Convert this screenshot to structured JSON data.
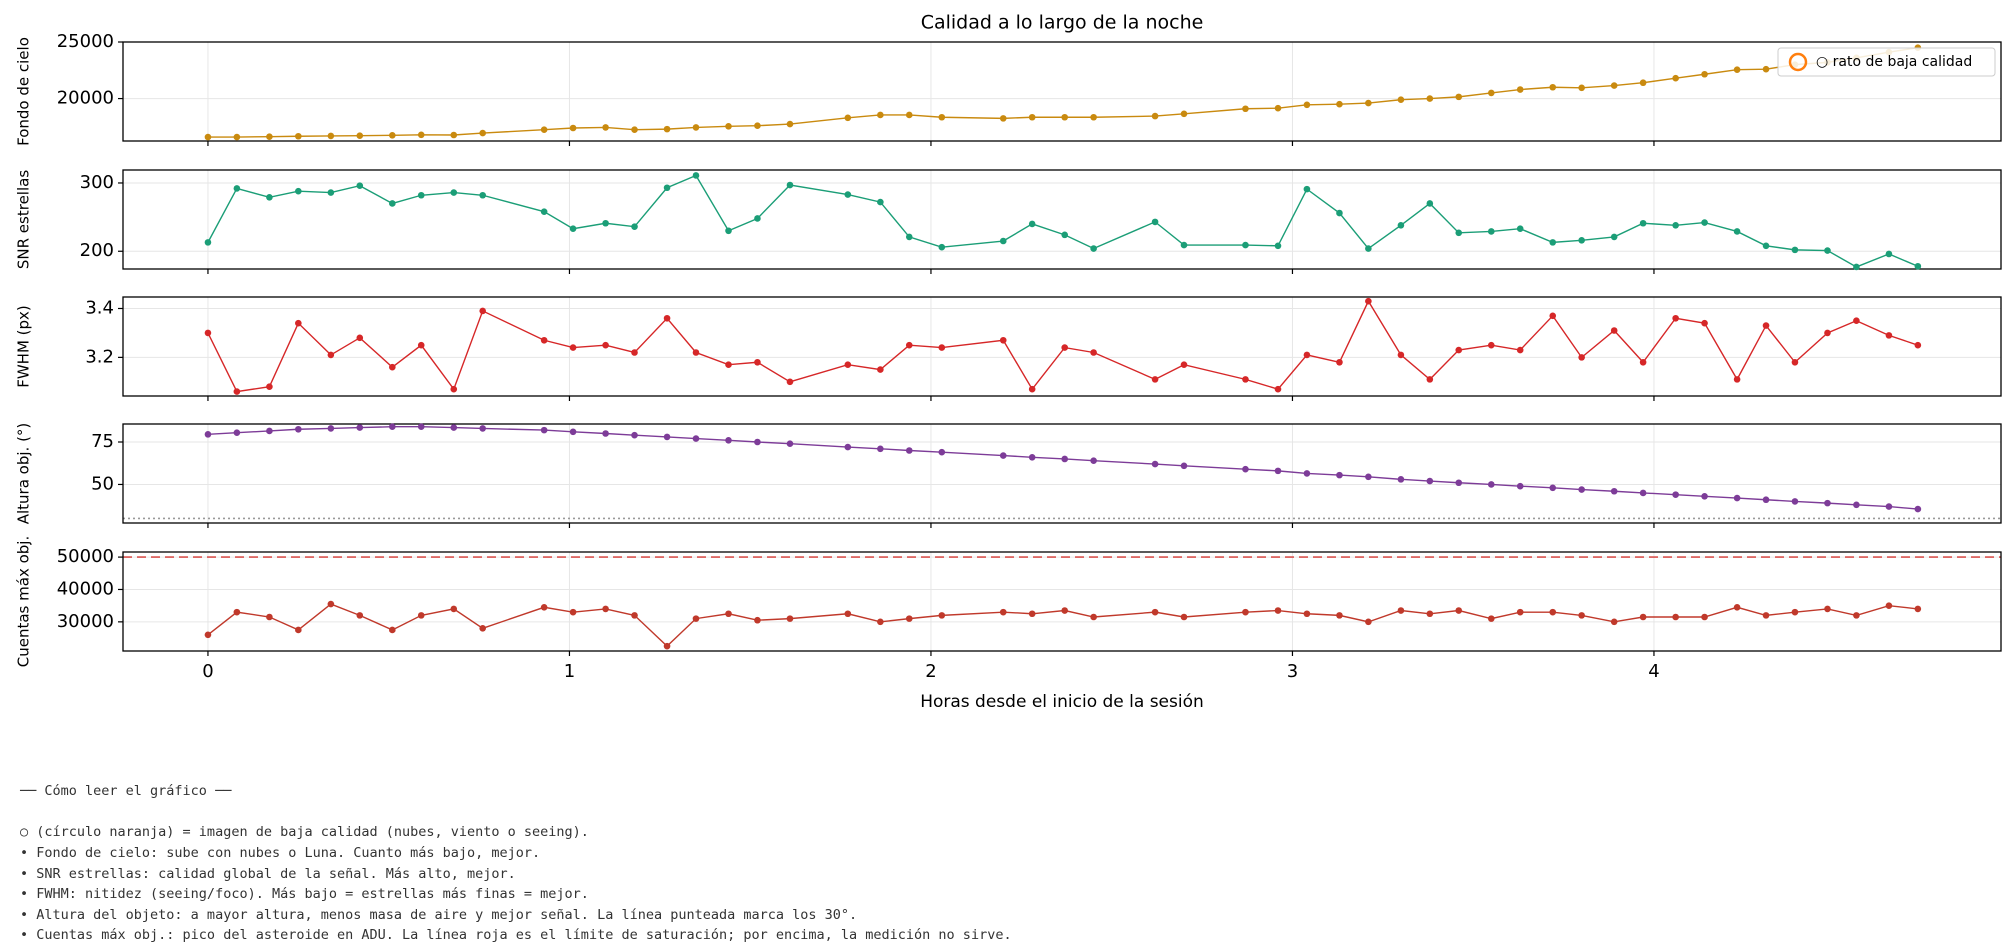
{
  "chart_data": {
    "type": "line",
    "title": "Calidad a lo largo de la noche",
    "xlabel": "Horas desde el inicio de la sesión",
    "x": [
      0,
      0.08,
      0.17,
      0.25,
      0.34,
      0.42,
      0.51,
      0.59,
      0.68,
      0.76,
      0.93,
      1.01,
      1.1,
      1.18,
      1.27,
      1.35,
      1.44,
      1.52,
      1.61,
      1.77,
      1.86,
      1.94,
      2.03,
      2.2,
      2.28,
      2.37,
      2.45,
      2.62,
      2.7,
      2.87,
      2.96,
      3.04,
      3.13,
      3.21,
      3.3,
      3.38,
      3.46,
      3.55,
      3.63,
      3.72,
      3.8,
      3.89,
      3.97,
      4.06,
      4.14,
      4.23,
      4.31,
      4.39,
      4.48,
      4.56,
      4.65,
      4.73
    ],
    "xlim": [
      -0.235,
      4.96
    ],
    "xticks": [
      0,
      1,
      2,
      3,
      4
    ],
    "grid": true,
    "legend": {
      "label": "○ rato de baja calidad",
      "color": "#ff7f0e",
      "corner": "upper right"
    },
    "panels": [
      {
        "ylabel": "Fondo de cielo",
        "ylim": [
          16250,
          25000
        ],
        "yticks": [
          20000,
          25000
        ],
        "color": "#c98a0f",
        "values": [
          16600,
          16600,
          16630,
          16670,
          16700,
          16720,
          16750,
          16800,
          16780,
          16950,
          17250,
          17400,
          17450,
          17250,
          17300,
          17450,
          17550,
          17600,
          17750,
          18300,
          18550,
          18550,
          18350,
          18250,
          18350,
          18350,
          18350,
          18450,
          18650,
          19100,
          19150,
          19450,
          19500,
          19600,
          19900,
          20000,
          20150,
          20500,
          20800,
          21000,
          20950,
          21150,
          21400,
          21800,
          22150,
          22550,
          22600,
          23000,
          23200,
          23600,
          24100,
          24500
        ]
      },
      {
        "ylabel": "SNR estrellas",
        "ylim": [
          174,
          319
        ],
        "yticks": [
          200,
          300
        ],
        "color": "#1b9e77",
        "values": [
          213,
          292,
          279,
          288,
          286,
          296,
          270,
          282,
          286,
          282,
          258,
          233,
          241,
          236,
          293,
          311,
          230,
          248,
          297,
          283,
          272,
          221,
          206,
          215,
          240,
          224,
          204,
          243,
          209,
          209,
          208,
          291,
          256,
          204,
          238,
          270,
          227,
          229,
          233,
          213,
          216,
          221,
          241,
          238,
          242,
          229,
          208,
          202,
          201,
          177,
          196,
          178
        ]
      },
      {
        "ylabel": "FWHM (px)",
        "ylim": [
          3.042,
          3.447
        ],
        "yticks": [
          3.2,
          3.4
        ],
        "color": "#d62728",
        "values": [
          3.3,
          3.06,
          3.08,
          3.34,
          3.21,
          3.28,
          3.16,
          3.25,
          3.07,
          3.39,
          3.27,
          3.24,
          3.25,
          3.22,
          3.36,
          3.22,
          3.17,
          3.18,
          3.1,
          3.17,
          3.15,
          3.25,
          3.24,
          3.27,
          3.07,
          3.24,
          3.22,
          3.11,
          3.17,
          3.11,
          3.07,
          3.21,
          3.18,
          3.43,
          3.21,
          3.11,
          3.23,
          3.25,
          3.23,
          3.37,
          3.2,
          3.31,
          3.18,
          3.36,
          3.34,
          3.11,
          3.33,
          3.18,
          3.3,
          3.35,
          3.29,
          3.25
        ]
      },
      {
        "ylabel": "Altura obj. (°)",
        "ylim": [
          27.3,
          85.6
        ],
        "yticks": [
          50,
          75
        ],
        "color": "#7d3c98",
        "hlines": [
          {
            "value": 30,
            "style": "dotted",
            "color": "#999999"
          }
        ],
        "values": [
          79.5,
          80.5,
          81.5,
          82.5,
          83,
          83.5,
          84,
          84,
          83.5,
          83,
          82,
          81,
          80,
          79,
          78,
          77,
          76,
          75,
          74,
          72,
          71,
          70,
          69,
          67,
          66,
          65,
          64,
          62,
          61,
          59,
          58,
          56.5,
          55.5,
          54.5,
          53,
          52,
          51,
          50,
          49,
          48,
          47,
          46,
          45,
          44,
          43,
          42,
          41,
          40,
          39,
          38,
          37,
          35.5
        ]
      },
      {
        "ylabel": "Cuentas máx obj.",
        "ylim": [
          21000,
          51570
        ],
        "yticks": [
          30000,
          40000,
          50000
        ],
        "color": "#c0392b",
        "hlines": [
          {
            "value": 50000,
            "style": "dashed",
            "color": "#d9534f"
          }
        ],
        "values": [
          26000,
          33000,
          31500,
          27500,
          35500,
          32000,
          27500,
          32000,
          34000,
          28000,
          34500,
          33000,
          34000,
          32000,
          22500,
          31000,
          32500,
          30500,
          31000,
          32500,
          30000,
          31000,
          32000,
          33000,
          32500,
          33500,
          31500,
          33000,
          31500,
          33000,
          33500,
          32500,
          32000,
          30000,
          33500,
          32500,
          33500,
          31000,
          33000,
          33000,
          32000,
          30000,
          31500,
          31500,
          31500,
          34500,
          32000,
          33000,
          34000,
          32000,
          35000,
          34000
        ]
      }
    ]
  },
  "notes": {
    "heading": "── Cómo leer el gráfico ──",
    "lines": [
      "○ (círculo naranja) = imagen de baja calidad (nubes, viento o seeing).",
      "• Fondo de cielo: sube con nubes o Luna. Cuanto más bajo, mejor.",
      "• SNR estrellas: calidad global de la señal. Más alto, mejor.",
      "• FWHM: nitidez (seeing/foco). Más bajo = estrellas más finas = mejor.",
      "• Altura del objeto: a mayor altura, menos masa de aire y mejor señal. La línea punteada marca los 30°.",
      "• Cuentas máx obj.: pico del asteroide en ADU. La línea roja es el límite de saturación; por encima, la medición no sirve."
    ]
  }
}
